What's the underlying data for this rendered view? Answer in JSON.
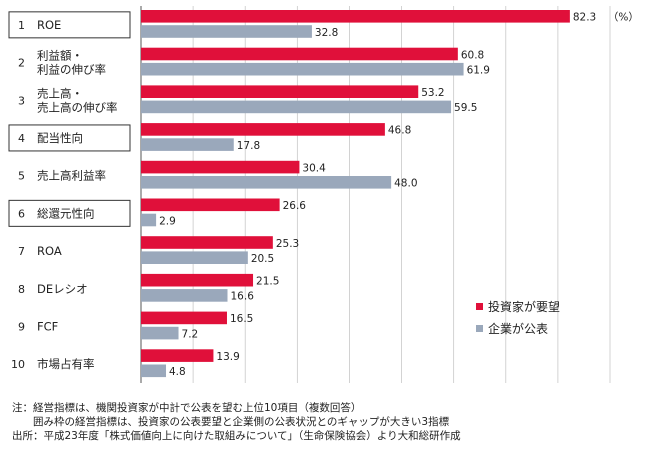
{
  "chart_data": {
    "type": "bar",
    "orientation": "horizontal",
    "unit_label": "（%）",
    "xlim": [
      0,
      90
    ],
    "grid": true,
    "legend_position": "bottom-right",
    "categories": [
      {
        "num": "1",
        "lines": [
          "ROE"
        ],
        "boxed": true
      },
      {
        "num": "2",
        "lines": [
          "利益額・",
          "利益の伸び率"
        ],
        "boxed": false
      },
      {
        "num": "3",
        "lines": [
          "売上高・",
          "売上高の伸び率"
        ],
        "boxed": false
      },
      {
        "num": "4",
        "lines": [
          "配当性向"
        ],
        "boxed": true
      },
      {
        "num": "5",
        "lines": [
          "売上高利益率"
        ],
        "boxed": false
      },
      {
        "num": "6",
        "lines": [
          "総還元性向"
        ],
        "boxed": true
      },
      {
        "num": "7",
        "lines": [
          "ROA"
        ],
        "boxed": false
      },
      {
        "num": "8",
        "lines": [
          "DEレシオ"
        ],
        "boxed": false
      },
      {
        "num": "9",
        "lines": [
          "FCF"
        ],
        "boxed": false
      },
      {
        "num": "10",
        "lines": [
          "市場占有率"
        ],
        "boxed": false
      }
    ],
    "series": [
      {
        "name": "投資家が要望",
        "color": "#e0103a",
        "values": [
          82.3,
          60.8,
          53.2,
          46.8,
          30.4,
          26.6,
          25.3,
          21.5,
          16.5,
          13.9
        ]
      },
      {
        "name": "企業が公表",
        "color": "#9aa8bb",
        "values": [
          32.8,
          61.9,
          59.5,
          17.8,
          48.0,
          2.9,
          20.5,
          16.6,
          7.2,
          4.8
        ]
      }
    ]
  },
  "notes": [
    "注：経営指標は、機関投資家が中計で公表を望む上位10項目（複数回答）",
    "　　囲み枠の経営指標は、投資家の公表要望と企業側の公表状況とのギャップが大きい3指標",
    "出所：平成23年度「株式価値向上に向けた取組みについて」（生命保険協会）より大和総研作成"
  ]
}
